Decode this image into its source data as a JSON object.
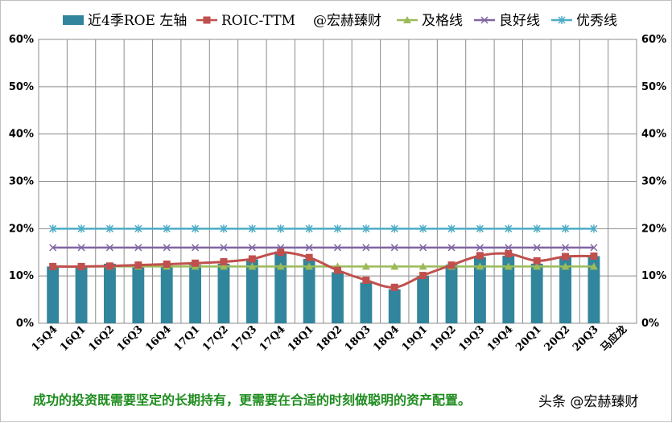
{
  "chart_data": {
    "type": "bar",
    "categories": [
      "15Q4",
      "16Q1",
      "16Q2",
      "16Q3",
      "16Q4",
      "17Q1",
      "17Q2",
      "17Q3",
      "17Q4",
      "18Q1",
      "18Q2",
      "18Q3",
      "18Q4",
      "19Q1",
      "19Q2",
      "19Q3",
      "19Q4",
      "20Q1",
      "20Q2",
      "20Q3"
    ],
    "extra_category_label": "马应龙",
    "series": [
      {
        "name": "近4季ROE 左轴",
        "kind": "bar",
        "color": "#31859c",
        "values": [
          12.0,
          12.0,
          12.6,
          12.5,
          12.3,
          12.4,
          12.6,
          13.5,
          15.2,
          13.6,
          10.8,
          8.6,
          7.2,
          10.0,
          12.4,
          14.0,
          14.3,
          12.6,
          14.1,
          14.2
        ]
      },
      {
        "name": "ROIC-TTM",
        "kind": "line",
        "color": "#c0504d",
        "values": [
          12.0,
          12.0,
          12.1,
          12.3,
          12.5,
          12.7,
          13.0,
          13.6,
          15.0,
          13.9,
          11.2,
          9.1,
          7.6,
          10.1,
          12.3,
          14.3,
          14.7,
          13.2,
          14.1,
          14.2
        ]
      },
      {
        "name": "及格线",
        "kind": "line",
        "color": "#9bbb59",
        "values": [
          12,
          12,
          12,
          12,
          12,
          12,
          12,
          12,
          12,
          12,
          12,
          12,
          12,
          12,
          12,
          12,
          12,
          12,
          12,
          12
        ]
      },
      {
        "name": "良好线",
        "kind": "line",
        "color": "#8064a2",
        "values": [
          16,
          16,
          16,
          16,
          16,
          16,
          16,
          16,
          16,
          16,
          16,
          16,
          16,
          16,
          16,
          16,
          16,
          16,
          16,
          16
        ]
      },
      {
        "name": "优秀线",
        "kind": "line",
        "color": "#4bacc6",
        "values": [
          20,
          20,
          20,
          20,
          20,
          20,
          20,
          20,
          20,
          20,
          20,
          20,
          20,
          20,
          20,
          20,
          20,
          20,
          20,
          20
        ]
      }
    ],
    "legend_extra": "@宏赫臻财",
    "ylim": [
      0,
      60
    ],
    "yticks": [
      "0%",
      "10%",
      "20%",
      "30%",
      "40%",
      "50%",
      "60%"
    ],
    "grid": true,
    "legend_position": "top"
  },
  "caption": "成功的投资既需要坚定的长期持有，更需要在合适的时刻做聪明的资产配置。",
  "watermark": "头条 @宏赫臻财"
}
